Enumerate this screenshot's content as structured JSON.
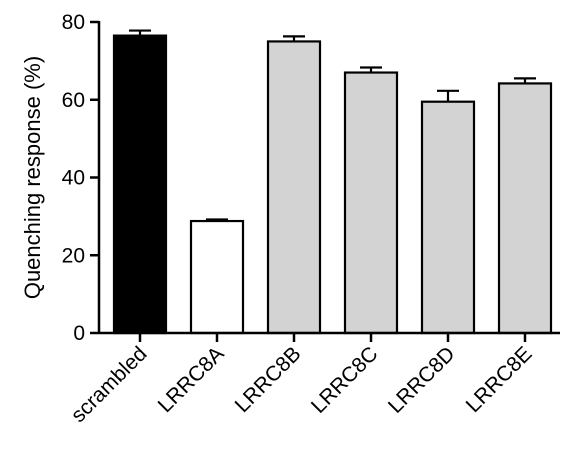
{
  "chart_data": {
    "type": "bar",
    "title": "",
    "xlabel": "",
    "ylabel": "Quenching response (%)",
    "ylim": [
      0,
      80
    ],
    "yticks": [
      0,
      20,
      40,
      60,
      80
    ],
    "categories": [
      "scrambled",
      "LRRC8A",
      "LRRC8B",
      "LRRC8C",
      "LRRC8D",
      "LRRC8E"
    ],
    "values": [
      76.5,
      28.8,
      75.0,
      67.0,
      59.5,
      64.2
    ],
    "errors": [
      1.3,
      0.4,
      1.3,
      1.3,
      2.8,
      1.3
    ],
    "colors": [
      "#000000",
      "#ffffff",
      "#d3d3d3",
      "#d3d3d3",
      "#d3d3d3",
      "#d3d3d3"
    ],
    "grid": false
  }
}
